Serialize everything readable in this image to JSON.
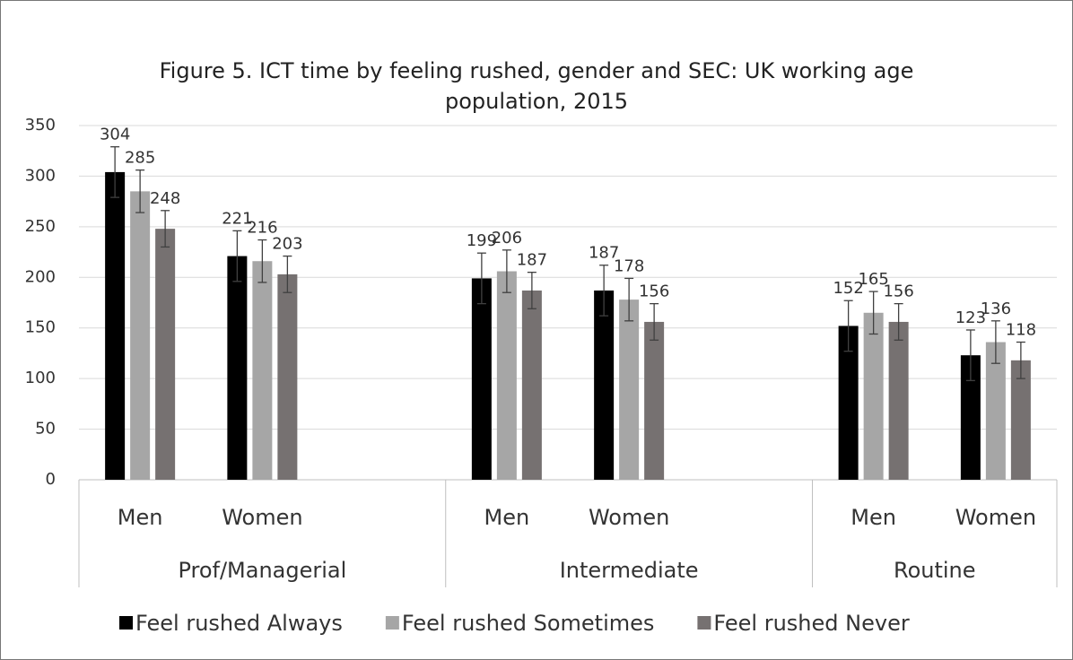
{
  "chart_data": {
    "type": "bar",
    "title": "Figure 5. ICT time by feeling rushed, gender and SEC: UK working age population, 2015",
    "categories": [
      "Men",
      "Women",
      null,
      "Men",
      "Women",
      null,
      "Men",
      "Women"
    ],
    "groups": [
      {
        "label": "Prof/Managerial",
        "span": 3
      },
      {
        "label": "Intermediate",
        "span": 3
      },
      {
        "label": "Routine",
        "span": 2
      }
    ],
    "series": [
      {
        "name": "Feel rushed Always",
        "color": "#000000",
        "values": [
          304,
          221,
          null,
          199,
          187,
          null,
          152,
          123
        ],
        "errors": [
          25,
          25,
          null,
          25,
          25,
          null,
          25,
          25
        ]
      },
      {
        "name": "Feel rushed Sometimes",
        "color": "#a6a6a6",
        "values": [
          285,
          216,
          null,
          206,
          178,
          null,
          165,
          136
        ],
        "errors": [
          21,
          21,
          null,
          21,
          21,
          null,
          21,
          21
        ]
      },
      {
        "name": "Feel rushed Never",
        "color": "#767171",
        "values": [
          248,
          203,
          null,
          187,
          156,
          null,
          156,
          118
        ],
        "errors": [
          18,
          18,
          null,
          18,
          18,
          null,
          18,
          18
        ]
      }
    ],
    "ylim": [
      0,
      350
    ],
    "yticks": [
      0,
      50,
      100,
      150,
      200,
      250,
      300,
      350
    ],
    "grid": true,
    "legend": "bottom"
  }
}
